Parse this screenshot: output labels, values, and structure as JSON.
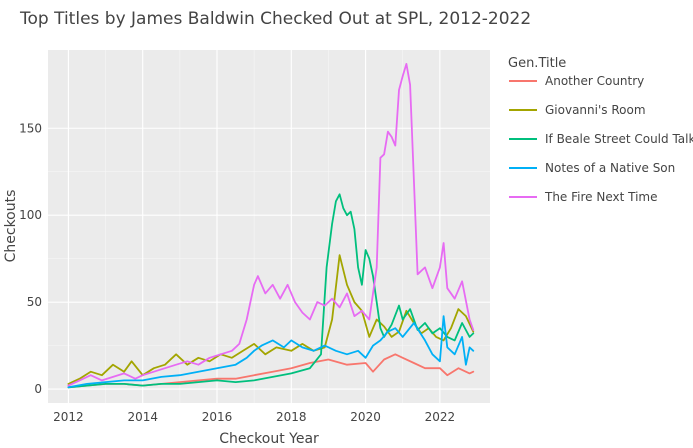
{
  "chart_data": {
    "type": "line",
    "title": "Top Titles by James Baldwin Checked Out at SPL, 2012-2022",
    "xlabel": "Checkout Year",
    "ylabel": "Checkouts",
    "xlim": [
      2011.45,
      2023.35
    ],
    "ylim": [
      -8,
      195
    ],
    "x_ticks": [
      2012,
      2014,
      2016,
      2018,
      2020,
      2022
    ],
    "x_tick_labels": [
      "2012",
      "2014",
      "2016",
      "2018",
      "2020",
      "2022"
    ],
    "y_ticks": [
      0,
      50,
      100,
      150
    ],
    "y_tick_labels": [
      "0",
      "50",
      "100",
      "150"
    ],
    "grid": true,
    "background": "#ebebeb",
    "legend": {
      "title": "Gen.Title",
      "position": "right"
    },
    "series": [
      {
        "name": "Another Country",
        "color": "#f8766d",
        "points": [
          [
            2012,
            1
          ],
          [
            2012.5,
            2
          ],
          [
            2013,
            3
          ],
          [
            2013.5,
            3
          ],
          [
            2014,
            2
          ],
          [
            2014.5,
            3
          ],
          [
            2015,
            4
          ],
          [
            2015.5,
            5
          ],
          [
            2016,
            6
          ],
          [
            2016.5,
            6
          ],
          [
            2017,
            8
          ],
          [
            2017.5,
            10
          ],
          [
            2018,
            12
          ],
          [
            2018.5,
            15
          ],
          [
            2019,
            17
          ],
          [
            2019.5,
            14
          ],
          [
            2020,
            15
          ],
          [
            2020.2,
            10
          ],
          [
            2020.5,
            17
          ],
          [
            2020.8,
            20
          ],
          [
            2021,
            18
          ],
          [
            2021.3,
            15
          ],
          [
            2021.6,
            12
          ],
          [
            2022,
            12
          ],
          [
            2022.2,
            8
          ],
          [
            2022.5,
            12
          ],
          [
            2022.8,
            9
          ],
          [
            2022.9,
            10
          ]
        ]
      },
      {
        "name": "Giovanni's Room",
        "color": "#a3a500",
        "points": [
          [
            2012,
            3
          ],
          [
            2012.3,
            6
          ],
          [
            2012.6,
            10
          ],
          [
            2012.9,
            8
          ],
          [
            2013.2,
            14
          ],
          [
            2013.5,
            10
          ],
          [
            2013.7,
            16
          ],
          [
            2014,
            8
          ],
          [
            2014.3,
            12
          ],
          [
            2014.6,
            14
          ],
          [
            2014.9,
            20
          ],
          [
            2015.2,
            14
          ],
          [
            2015.5,
            18
          ],
          [
            2015.8,
            16
          ],
          [
            2016.1,
            20
          ],
          [
            2016.4,
            18
          ],
          [
            2016.7,
            22
          ],
          [
            2017,
            26
          ],
          [
            2017.3,
            20
          ],
          [
            2017.6,
            24
          ],
          [
            2018,
            22
          ],
          [
            2018.3,
            26
          ],
          [
            2018.6,
            22
          ],
          [
            2018.9,
            24
          ],
          [
            2019.1,
            40
          ],
          [
            2019.3,
            77
          ],
          [
            2019.5,
            60
          ],
          [
            2019.7,
            50
          ],
          [
            2019.9,
            45
          ],
          [
            2020.1,
            30
          ],
          [
            2020.3,
            40
          ],
          [
            2020.5,
            36
          ],
          [
            2020.7,
            30
          ],
          [
            2020.9,
            33
          ],
          [
            2021.1,
            45
          ],
          [
            2021.3,
            38
          ],
          [
            2021.5,
            32
          ],
          [
            2021.7,
            35
          ],
          [
            2021.9,
            30
          ],
          [
            2022.1,
            28
          ],
          [
            2022.3,
            35
          ],
          [
            2022.5,
            46
          ],
          [
            2022.7,
            42
          ],
          [
            2022.9,
            33
          ]
        ]
      },
      {
        "name": "If Beale Street Could Talk",
        "color": "#00bf7d",
        "points": [
          [
            2012,
            1
          ],
          [
            2012.5,
            2
          ],
          [
            2013,
            3
          ],
          [
            2013.5,
            3
          ],
          [
            2014,
            2
          ],
          [
            2014.5,
            3
          ],
          [
            2015,
            3
          ],
          [
            2015.5,
            4
          ],
          [
            2016,
            5
          ],
          [
            2016.5,
            4
          ],
          [
            2017,
            5
          ],
          [
            2017.5,
            7
          ],
          [
            2018,
            9
          ],
          [
            2018.5,
            12
          ],
          [
            2018.8,
            20
          ],
          [
            2018.95,
            70
          ],
          [
            2019.1,
            95
          ],
          [
            2019.2,
            108
          ],
          [
            2019.3,
            112
          ],
          [
            2019.4,
            104
          ],
          [
            2019.5,
            100
          ],
          [
            2019.6,
            102
          ],
          [
            2019.7,
            92
          ],
          [
            2019.8,
            70
          ],
          [
            2019.9,
            60
          ],
          [
            2020,
            80
          ],
          [
            2020.1,
            75
          ],
          [
            2020.2,
            65
          ],
          [
            2020.3,
            50
          ],
          [
            2020.4,
            35
          ],
          [
            2020.5,
            30
          ],
          [
            2020.7,
            37
          ],
          [
            2020.9,
            48
          ],
          [
            2021,
            40
          ],
          [
            2021.2,
            46
          ],
          [
            2021.4,
            34
          ],
          [
            2021.6,
            38
          ],
          [
            2021.8,
            32
          ],
          [
            2022,
            35
          ],
          [
            2022.2,
            30
          ],
          [
            2022.4,
            28
          ],
          [
            2022.6,
            38
          ],
          [
            2022.8,
            30
          ],
          [
            2022.9,
            32
          ]
        ]
      },
      {
        "name": "Notes of a Native Son",
        "color": "#00b0f6",
        "points": [
          [
            2012,
            1
          ],
          [
            2012.5,
            3
          ],
          [
            2013,
            4
          ],
          [
            2013.5,
            5
          ],
          [
            2014,
            5
          ],
          [
            2014.5,
            7
          ],
          [
            2015,
            8
          ],
          [
            2015.5,
            10
          ],
          [
            2016,
            12
          ],
          [
            2016.5,
            14
          ],
          [
            2016.8,
            18
          ],
          [
            2017,
            22
          ],
          [
            2017.2,
            25
          ],
          [
            2017.5,
            28
          ],
          [
            2017.8,
            24
          ],
          [
            2018,
            28
          ],
          [
            2018.3,
            24
          ],
          [
            2018.6,
            22
          ],
          [
            2018.9,
            25
          ],
          [
            2019.2,
            22
          ],
          [
            2019.5,
            20
          ],
          [
            2019.8,
            22
          ],
          [
            2020,
            18
          ],
          [
            2020.2,
            25
          ],
          [
            2020.4,
            28
          ],
          [
            2020.6,
            33
          ],
          [
            2020.8,
            35
          ],
          [
            2021,
            30
          ],
          [
            2021.3,
            38
          ],
          [
            2021.6,
            28
          ],
          [
            2021.8,
            20
          ],
          [
            2022,
            16
          ],
          [
            2022.1,
            42
          ],
          [
            2022.2,
            24
          ],
          [
            2022.4,
            20
          ],
          [
            2022.6,
            30
          ],
          [
            2022.7,
            14
          ],
          [
            2022.8,
            24
          ],
          [
            2022.9,
            22
          ]
        ]
      },
      {
        "name": "The Fire Next Time",
        "color": "#e76bf3",
        "points": [
          [
            2012,
            2
          ],
          [
            2012.3,
            5
          ],
          [
            2012.6,
            8
          ],
          [
            2012.9,
            5
          ],
          [
            2013.2,
            7
          ],
          [
            2013.5,
            9
          ],
          [
            2013.8,
            6
          ],
          [
            2014,
            8
          ],
          [
            2014.3,
            10
          ],
          [
            2014.6,
            12
          ],
          [
            2014.9,
            14
          ],
          [
            2015.2,
            16
          ],
          [
            2015.5,
            14
          ],
          [
            2015.8,
            18
          ],
          [
            2016.1,
            20
          ],
          [
            2016.4,
            22
          ],
          [
            2016.6,
            26
          ],
          [
            2016.8,
            40
          ],
          [
            2017,
            60
          ],
          [
            2017.1,
            65
          ],
          [
            2017.3,
            55
          ],
          [
            2017.5,
            60
          ],
          [
            2017.7,
            52
          ],
          [
            2017.9,
            60
          ],
          [
            2018.1,
            50
          ],
          [
            2018.3,
            44
          ],
          [
            2018.5,
            40
          ],
          [
            2018.7,
            50
          ],
          [
            2018.9,
            48
          ],
          [
            2019.1,
            52
          ],
          [
            2019.3,
            47
          ],
          [
            2019.5,
            55
          ],
          [
            2019.7,
            42
          ],
          [
            2019.9,
            45
          ],
          [
            2020.1,
            40
          ],
          [
            2020.3,
            70
          ],
          [
            2020.4,
            133
          ],
          [
            2020.5,
            135
          ],
          [
            2020.6,
            148
          ],
          [
            2020.7,
            145
          ],
          [
            2020.8,
            140
          ],
          [
            2020.9,
            172
          ],
          [
            2021,
            180
          ],
          [
            2021.1,
            187
          ],
          [
            2021.2,
            175
          ],
          [
            2021.3,
            120
          ],
          [
            2021.4,
            66
          ],
          [
            2021.6,
            70
          ],
          [
            2021.8,
            58
          ],
          [
            2022,
            70
          ],
          [
            2022.1,
            84
          ],
          [
            2022.2,
            58
          ],
          [
            2022.4,
            52
          ],
          [
            2022.6,
            62
          ],
          [
            2022.8,
            40
          ],
          [
            2022.9,
            34
          ]
        ]
      }
    ]
  }
}
